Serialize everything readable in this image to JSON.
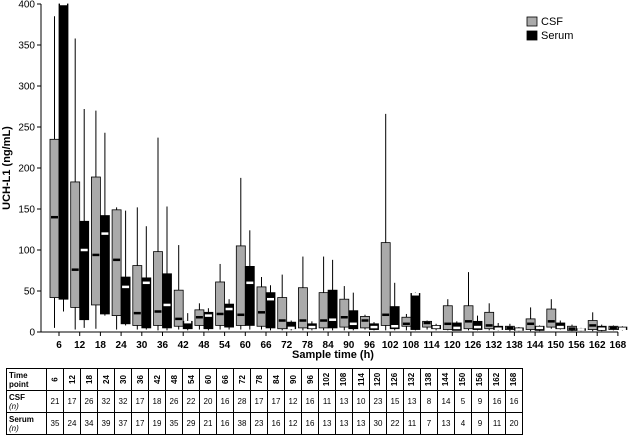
{
  "chart_data": {
    "type": "box",
    "ylabel": "UCH-L1 (ng/mL)",
    "xlabel": "Sample time (h)",
    "ylim": [
      0,
      400
    ],
    "yticks": [
      0,
      50,
      100,
      150,
      200,
      250,
      300,
      350,
      400
    ],
    "grid": false,
    "legend_position": "top-right",
    "categories": [
      "6",
      "12",
      "18",
      "24",
      "30",
      "36",
      "42",
      "48",
      "54",
      "60",
      "66",
      "72",
      "78",
      "84",
      "90",
      "96",
      "102",
      "108",
      "114",
      "120",
      "126",
      "132",
      "138",
      "144",
      "150",
      "156",
      "162",
      "168"
    ],
    "series": [
      {
        "name": "CSF",
        "color": "#aaaaaa",
        "min": [
          5,
          3,
          4,
          3,
          3,
          2,
          3,
          3,
          3,
          3,
          3,
          2,
          2,
          2,
          2,
          3,
          2,
          2,
          3,
          2,
          2,
          2,
          1,
          1,
          4,
          1,
          1,
          2
        ],
        "q1": [
          42,
          30,
          33,
          20,
          8,
          8,
          7,
          8,
          8,
          8,
          7,
          4,
          5,
          5,
          6,
          5,
          8,
          7,
          6,
          3,
          4,
          4,
          3,
          3,
          6,
          2,
          3,
          3
        ],
        "median": [
          140,
          76,
          94,
          88,
          23,
          25,
          16,
          18,
          22,
          21,
          24,
          14,
          14,
          14,
          18,
          14,
          21,
          10,
          11,
          10,
          13,
          8,
          5,
          10,
          13,
          4,
          8,
          5
        ],
        "q3": [
          235,
          183,
          189,
          149,
          81,
          98,
          51,
          27,
          61,
          105,
          55,
          42,
          54,
          48,
          40,
          19,
          109,
          18,
          13,
          32,
          32,
          24,
          7,
          16,
          28,
          7,
          14,
          7
        ],
        "max": [
          385,
          358,
          270,
          152,
          152,
          237,
          106,
          35,
          83,
          188,
          67,
          70,
          92,
          92,
          56,
          21,
          266,
          22,
          14,
          40,
          73,
          35,
          10,
          30,
          40,
          9,
          24,
          8
        ]
      },
      {
        "name": "Serum",
        "color": "#000000",
        "min": [
          25,
          5,
          20,
          8,
          3,
          2,
          2,
          2,
          3,
          3,
          2,
          2,
          2,
          2,
          2,
          2,
          2,
          2,
          2,
          2,
          2,
          2,
          1,
          1,
          3,
          1,
          1,
          2
        ],
        "q1": [
          40,
          15,
          22,
          10,
          5,
          5,
          4,
          4,
          6,
          8,
          5,
          4,
          4,
          5,
          4,
          3,
          4,
          3,
          4,
          2,
          3,
          3,
          2,
          2,
          4,
          2,
          2,
          3
        ],
        "median": [
          400,
          100,
          120,
          55,
          60,
          33,
          12,
          20,
          28,
          60,
          40,
          5,
          6,
          15,
          10,
          6,
          7,
          46,
          6,
          5,
          6,
          4,
          3,
          5,
          6,
          3,
          4,
          4
        ],
        "q3": [
          400,
          135,
          142,
          67,
          66,
          71,
          13,
          24,
          34,
          80,
          48,
          12,
          10,
          51,
          26,
          10,
          31,
          47,
          8,
          11,
          13,
          7,
          5,
          7,
          11,
          4,
          7,
          6
        ],
        "max": [
          400,
          272,
          243,
          148,
          129,
          153,
          23,
          29,
          40,
          124,
          57,
          14,
          13,
          88,
          48,
          12,
          60,
          48,
          10,
          13,
          20,
          11,
          6,
          8,
          14,
          5,
          9,
          7
        ]
      }
    ]
  },
  "table": {
    "header_label_line1": "Time",
    "header_label_line2": "point",
    "rows": [
      {
        "label": "CSF",
        "sublabel": "(n)",
        "values": [
          "21",
          "17",
          "26",
          "32",
          "32",
          "17",
          "18",
          "26",
          "22",
          "20",
          "16",
          "28",
          "17",
          "17",
          "12",
          "16",
          "11",
          "13",
          "10",
          "23",
          "15",
          "13",
          "8",
          "14",
          "5",
          "9",
          "16",
          "16"
        ]
      },
      {
        "label": "Serum",
        "sublabel": "(n)",
        "values": [
          "35",
          "24",
          "34",
          "39",
          "37",
          "17",
          "19",
          "35",
          "29",
          "21",
          "16",
          "38",
          "23",
          "16",
          "12",
          "16",
          "13",
          "13",
          "13",
          "30",
          "22",
          "11",
          "7",
          "13",
          "4",
          "9",
          "11",
          "20"
        ]
      }
    ]
  }
}
